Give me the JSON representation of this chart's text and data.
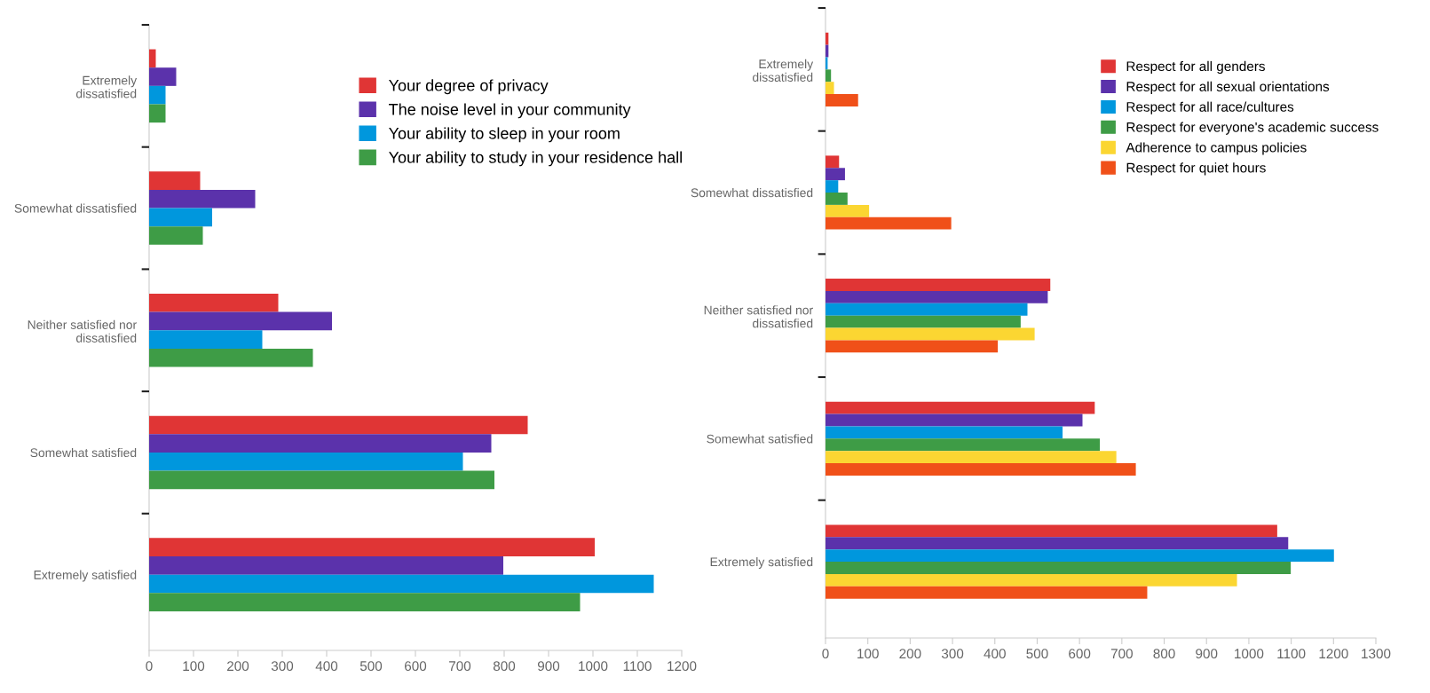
{
  "chart_data": [
    {
      "type": "bar",
      "orientation": "horizontal",
      "categories": [
        "Extremely dissatisfied",
        "Somewhat dissatisfied",
        "Neither satisfied nor dissatisfied",
        "Somewhat satisfied",
        "Extremely satisfied"
      ],
      "xlim": [
        0,
        1200
      ],
      "xticks": [
        0,
        100,
        200,
        300,
        400,
        500,
        600,
        700,
        800,
        900,
        1000,
        1100,
        1200
      ],
      "legend": "top right",
      "grid": false,
      "series": [
        {
          "name": "Your degree of privacy",
          "color": "#e03535",
          "values": [
            15,
            115,
            291,
            853,
            1004
          ]
        },
        {
          "name": "The noise level in your community",
          "color": "#5b32ab",
          "values": [
            61,
            239,
            412,
            771,
            798
          ]
        },
        {
          "name": "Your ability to sleep in your room",
          "color": "#0097dd",
          "values": [
            37,
            142,
            255,
            707,
            1137
          ]
        },
        {
          "name": "Your ability to study in your residence hall",
          "color": "#3e9c46",
          "values": [
            37,
            121,
            369,
            778,
            971
          ]
        }
      ]
    },
    {
      "type": "bar",
      "orientation": "horizontal",
      "categories": [
        "Extremely dissatisfied",
        "Somewhat dissatisfied",
        "Neither satisfied nor dissatisfied",
        "Somewhat satisfied",
        "Extremely satisfied"
      ],
      "xlim": [
        0,
        1300
      ],
      "xticks": [
        0,
        100,
        200,
        300,
        400,
        500,
        600,
        700,
        800,
        900,
        1000,
        1100,
        1200,
        1300
      ],
      "legend": "top right",
      "grid": false,
      "series": [
        {
          "name": "Respect for all genders",
          "color": "#e03535",
          "values": [
            7,
            32,
            531,
            636,
            1067
          ]
        },
        {
          "name": "Respect for all sexual orientations",
          "color": "#5b32ab",
          "values": [
            7,
            46,
            525,
            607,
            1093
          ]
        },
        {
          "name": "Respect for all race/cultures",
          "color": "#0097dd",
          "values": [
            5,
            30,
            477,
            560,
            1201
          ]
        },
        {
          "name": "Respect for everyone's academic success",
          "color": "#3e9c46",
          "values": [
            13,
            52,
            461,
            648,
            1099
          ]
        },
        {
          "name": "Adherence to campus policies",
          "color": "#fbd632",
          "values": [
            20,
            103,
            494,
            687,
            972
          ]
        },
        {
          "name": "Respect for quiet hours",
          "color": "#f05019",
          "values": [
            77,
            297,
            407,
            733,
            760
          ]
        }
      ]
    }
  ]
}
